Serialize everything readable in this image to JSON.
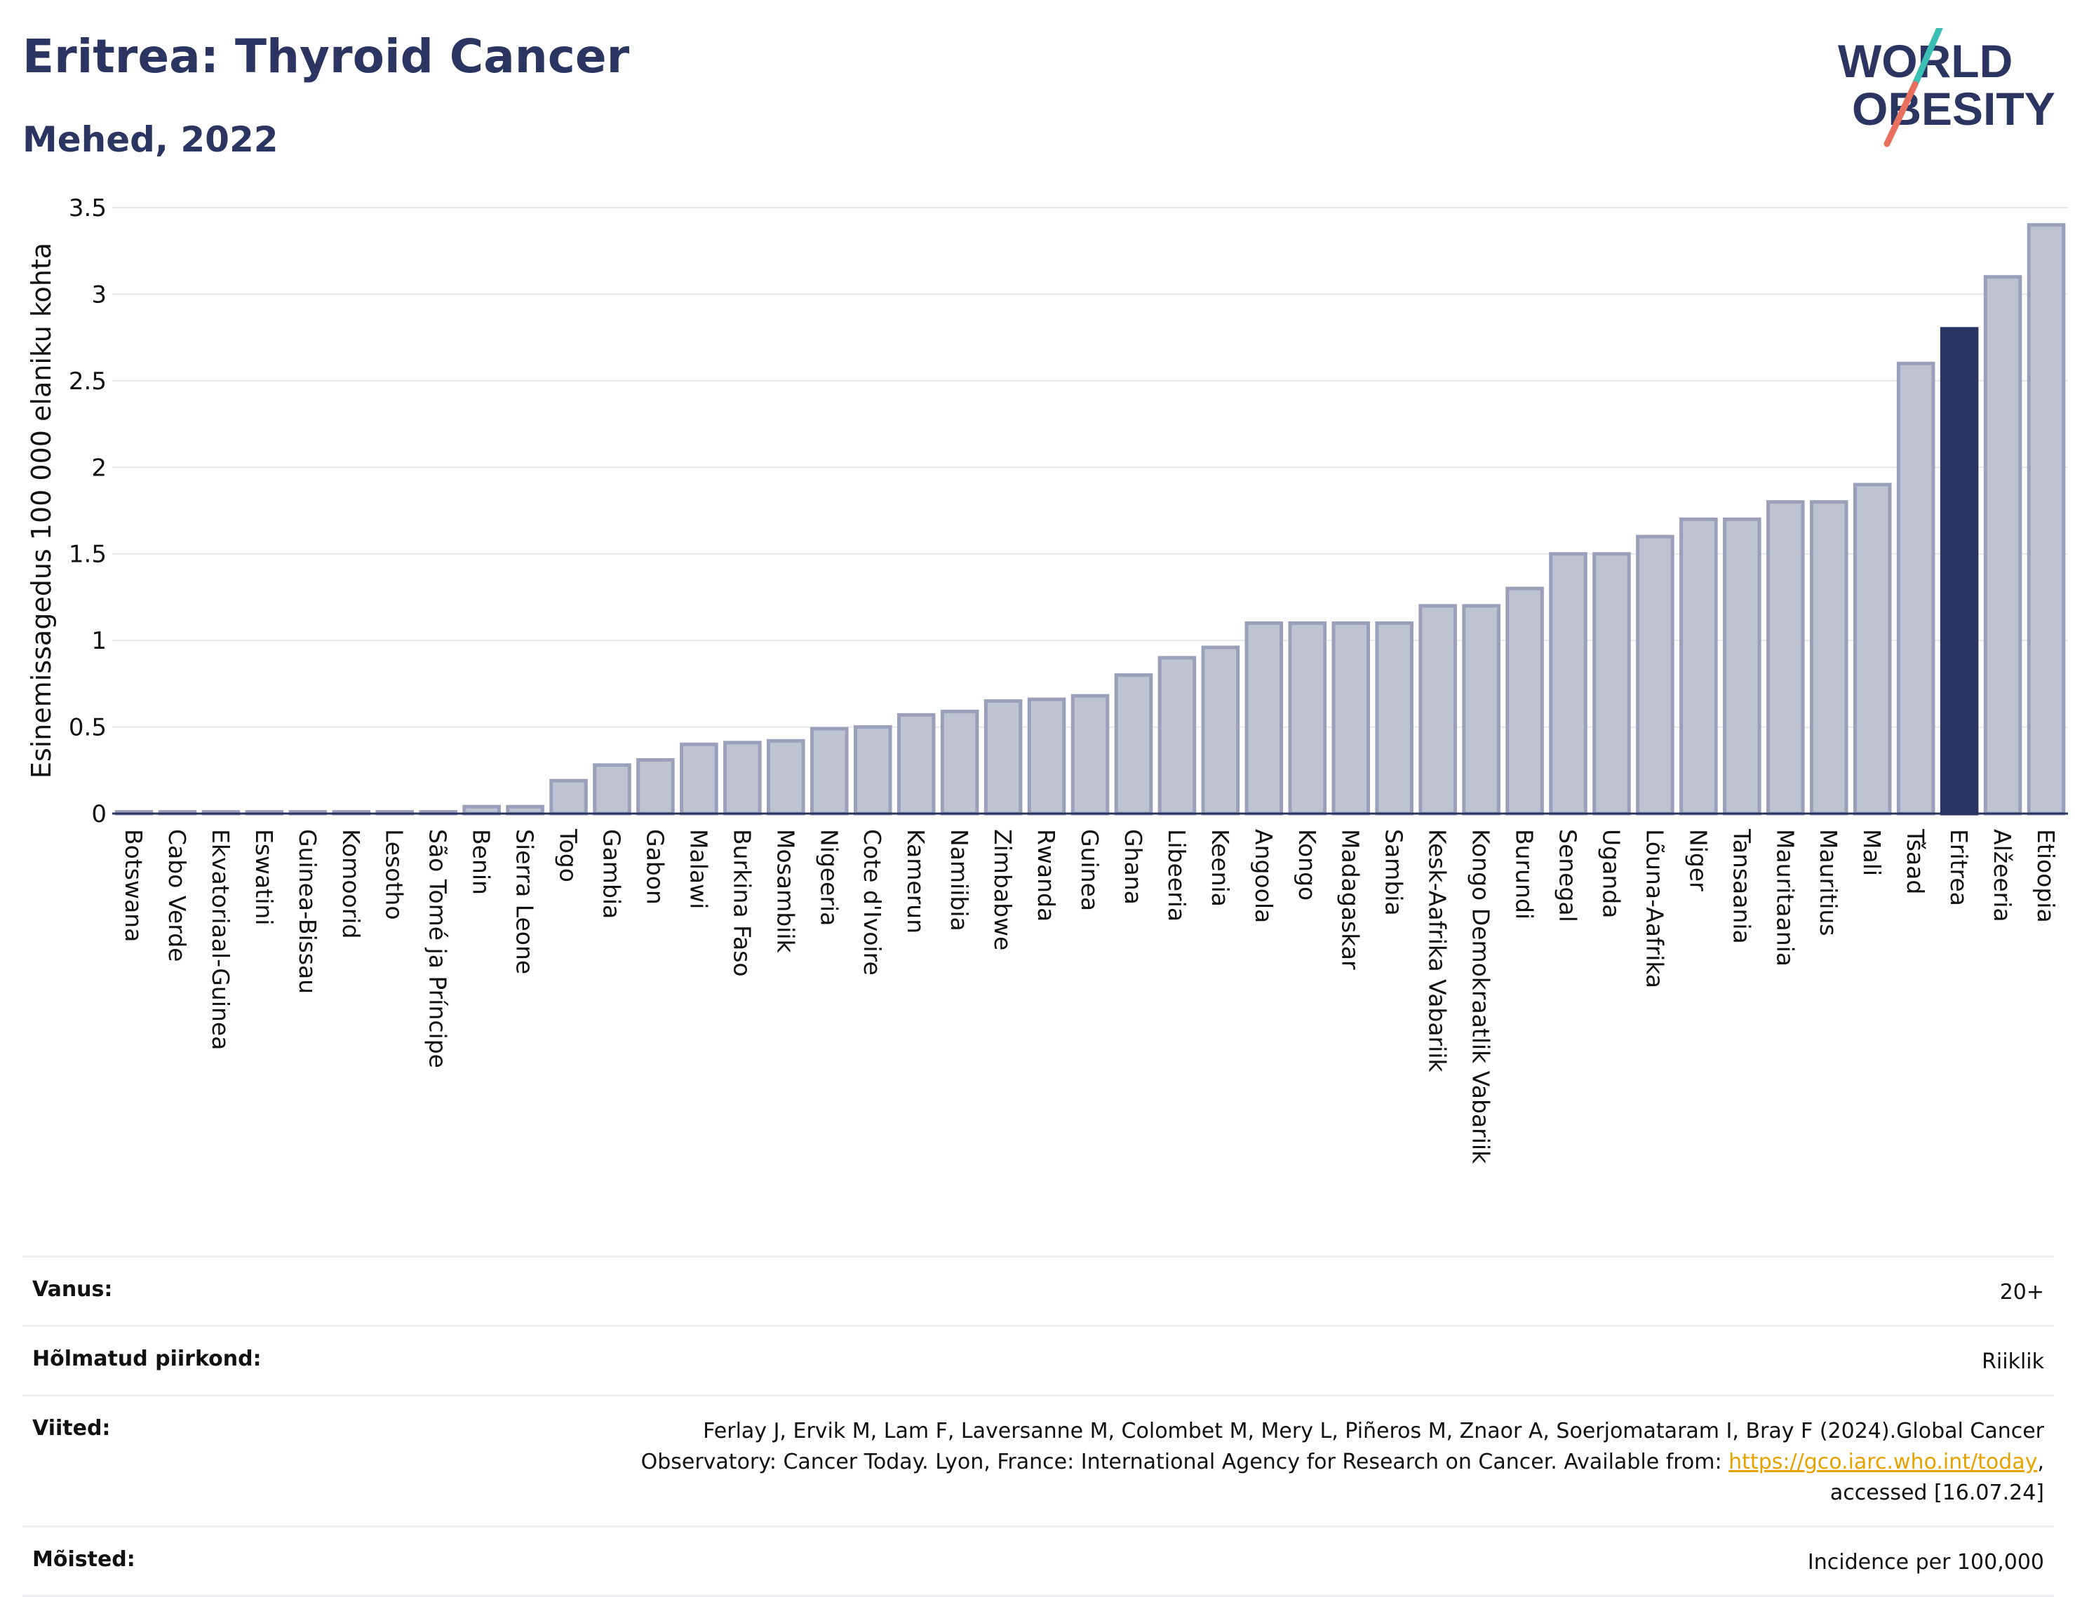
{
  "header": {
    "title": "Eritrea: Thyroid Cancer",
    "subtitle": "Mehed, 2022"
  },
  "logo": {
    "line1": "WORLD",
    "line2": "OBESITY",
    "accent_colors": [
      "#3bbfb4",
      "#e8705e"
    ]
  },
  "chart_data": {
    "type": "bar",
    "ylabel": "Esinemissagedus 100 000 elaniku kohta",
    "ylim": [
      0,
      3.5
    ],
    "yticks": [
      0,
      0.5,
      1,
      1.5,
      2,
      2.5,
      3,
      3.5
    ],
    "ytick_labels": [
      "0",
      "0.5",
      "1",
      "1.5",
      "2",
      "2.5",
      "3",
      "3.5"
    ],
    "grid": true,
    "highlight": "Eritrea",
    "colors": {
      "bar": "#bfc3d1",
      "bar_edge": "#9aa0b9",
      "highlight": "#2a3561"
    },
    "categories": [
      "Botswana",
      "Cabo Verde",
      "Ekvatoriaal-Guinea",
      "Eswatini",
      "Guinea-Bissau",
      "Komoorid",
      "Lesotho",
      "São Tomé ja Príncipe",
      "Benin",
      "Sierra Leone",
      "Togo",
      "Gambia",
      "Gabon",
      "Malawi",
      "Burkina Faso",
      "Mosambiik",
      "Nigeeria",
      "Cote d'Ivoire",
      "Kamerun",
      "Namiibia",
      "Zimbabwe",
      "Rwanda",
      "Guinea",
      "Ghana",
      "Libeeria",
      "Keenia",
      "Angoola",
      "Kongo",
      "Madagaskar",
      "Sambia",
      "Kesk-Aafrika Vabariik",
      "Kongo Demokraatlik Vabariik",
      "Burundi",
      "Senegal",
      "Uganda",
      "Lõuna-Aafrika",
      "Niger",
      "Tansaania",
      "Mauritaania",
      "Mauritius",
      "Mali",
      "Tšaad",
      "Eritrea",
      "Alžeeria",
      "Etioopia"
    ],
    "values": [
      0.01,
      0.01,
      0.01,
      0.01,
      0.01,
      0.01,
      0.01,
      0.01,
      0.04,
      0.04,
      0.19,
      0.28,
      0.31,
      0.4,
      0.41,
      0.42,
      0.49,
      0.5,
      0.57,
      0.59,
      0.65,
      0.66,
      0.68,
      0.8,
      0.9,
      0.96,
      1.1,
      1.1,
      1.1,
      1.1,
      1.2,
      1.2,
      1.3,
      1.5,
      1.5,
      1.6,
      1.7,
      1.7,
      1.8,
      1.8,
      1.9,
      2.6,
      2.8,
      3.1,
      3.4
    ]
  },
  "meta": {
    "age_label": "Vanus:",
    "age_value": "20+",
    "region_label": "Hõlmatud piirkond:",
    "region_value": "Riiklik",
    "refs_label": "Viited:",
    "refs_line1": "Ferlay J, Ervik M, Lam F, Laversanne M, Colombet M, Mery L, Piñeros M, Znaor A, Soerjomataram I, Bray F (2024).Global Cancer",
    "refs_line2_pre": "Observatory: Cancer Today. Lyon, France: International Agency for Research on Cancer. Available from: ",
    "refs_link": "https://gco.iarc.who.int/today",
    "refs_line2_post": ",",
    "refs_line3": "accessed [16.07.24]",
    "def_label": "Mõisted:",
    "def_value": "Incidence per 100,000"
  }
}
